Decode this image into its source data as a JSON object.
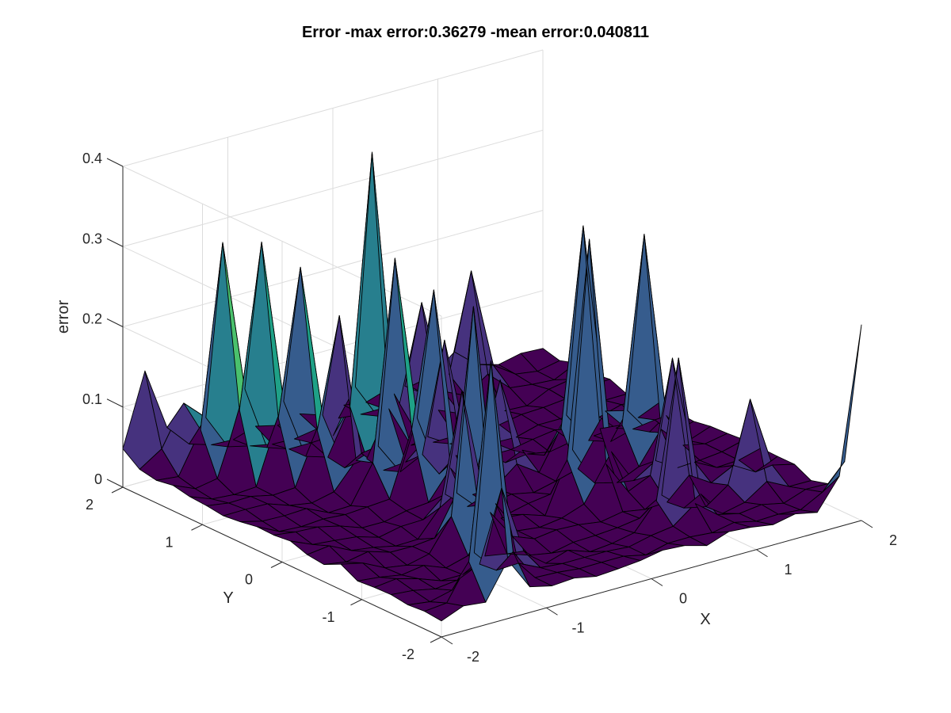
{
  "chart_data": {
    "type": "surface",
    "title": "Error -max error:0.36279 -mean error:0.040811",
    "xlabel": "X",
    "ylabel": "Y",
    "zlabel": "error",
    "xlim": [
      -2,
      2
    ],
    "ylim": [
      -2,
      2
    ],
    "zlim": [
      0,
      0.4
    ],
    "xticks": [
      "-2",
      "-1",
      "0",
      "1",
      "2"
    ],
    "yticks": [
      "-2",
      "-1",
      "0",
      "1",
      "2"
    ],
    "zticks": [
      "0",
      "0.1",
      "0.2",
      "0.3",
      "0.4"
    ],
    "grid": true,
    "colormap": [
      "#440154",
      "#46327e",
      "#365c8d",
      "#277f8e",
      "#1fa187",
      "#4ac16d",
      "#a0da39",
      "#fde725"
    ],
    "grid_size": 20,
    "max_error": 0.36279,
    "mean_error": 0.040811,
    "peaks": [
      {
        "x": -1.789,
        "y": 2.0,
        "z": 0.11
      },
      {
        "x": -1.579,
        "y": 1.789,
        "z": 0.07
      },
      {
        "x": -1.368,
        "y": 1.579,
        "z": 0.27
      },
      {
        "x": -1.158,
        "y": 1.368,
        "z": 0.28
      },
      {
        "x": -0.947,
        "y": 1.158,
        "z": 0.25
      },
      {
        "x": -0.737,
        "y": 0.947,
        "z": 0.2
      },
      {
        "x": -0.526,
        "y": 0.526,
        "z": 0.29
      },
      {
        "x": -0.316,
        "y": 0.316,
        "z": 0.24
      },
      {
        "x": -0.737,
        "y": -0.737,
        "z": 0.3
      },
      {
        "x": -0.105,
        "y": 1.368,
        "z": 0.36
      },
      {
        "x": -0.526,
        "y": -0.316,
        "z": 0.16
      },
      {
        "x": 0.105,
        "y": 0.737,
        "z": 0.16
      },
      {
        "x": 0.526,
        "y": 1.579,
        "z": 0.14
      },
      {
        "x": 1.158,
        "y": 1.789,
        "z": 0.14
      },
      {
        "x": 0.526,
        "y": -0.526,
        "z": 0.33
      },
      {
        "x": 0.947,
        "y": 0.105,
        "z": 0.3
      },
      {
        "x": 1.368,
        "y": -0.105,
        "z": 0.28
      },
      {
        "x": 1.158,
        "y": -0.737,
        "z": 0.16
      },
      {
        "x": 1.579,
        "y": -1.158,
        "z": 0.11
      },
      {
        "x": 2.0,
        "y": -2.0,
        "z": 0.22
      },
      {
        "x": -1.368,
        "y": -1.789,
        "z": 0.29
      },
      {
        "x": -0.947,
        "y": -1.368,
        "z": 0.1
      },
      {
        "x": 0.737,
        "y": -1.368,
        "z": 0.21
      },
      {
        "x": 0.316,
        "y": 0.316,
        "z": 0.12
      }
    ]
  }
}
